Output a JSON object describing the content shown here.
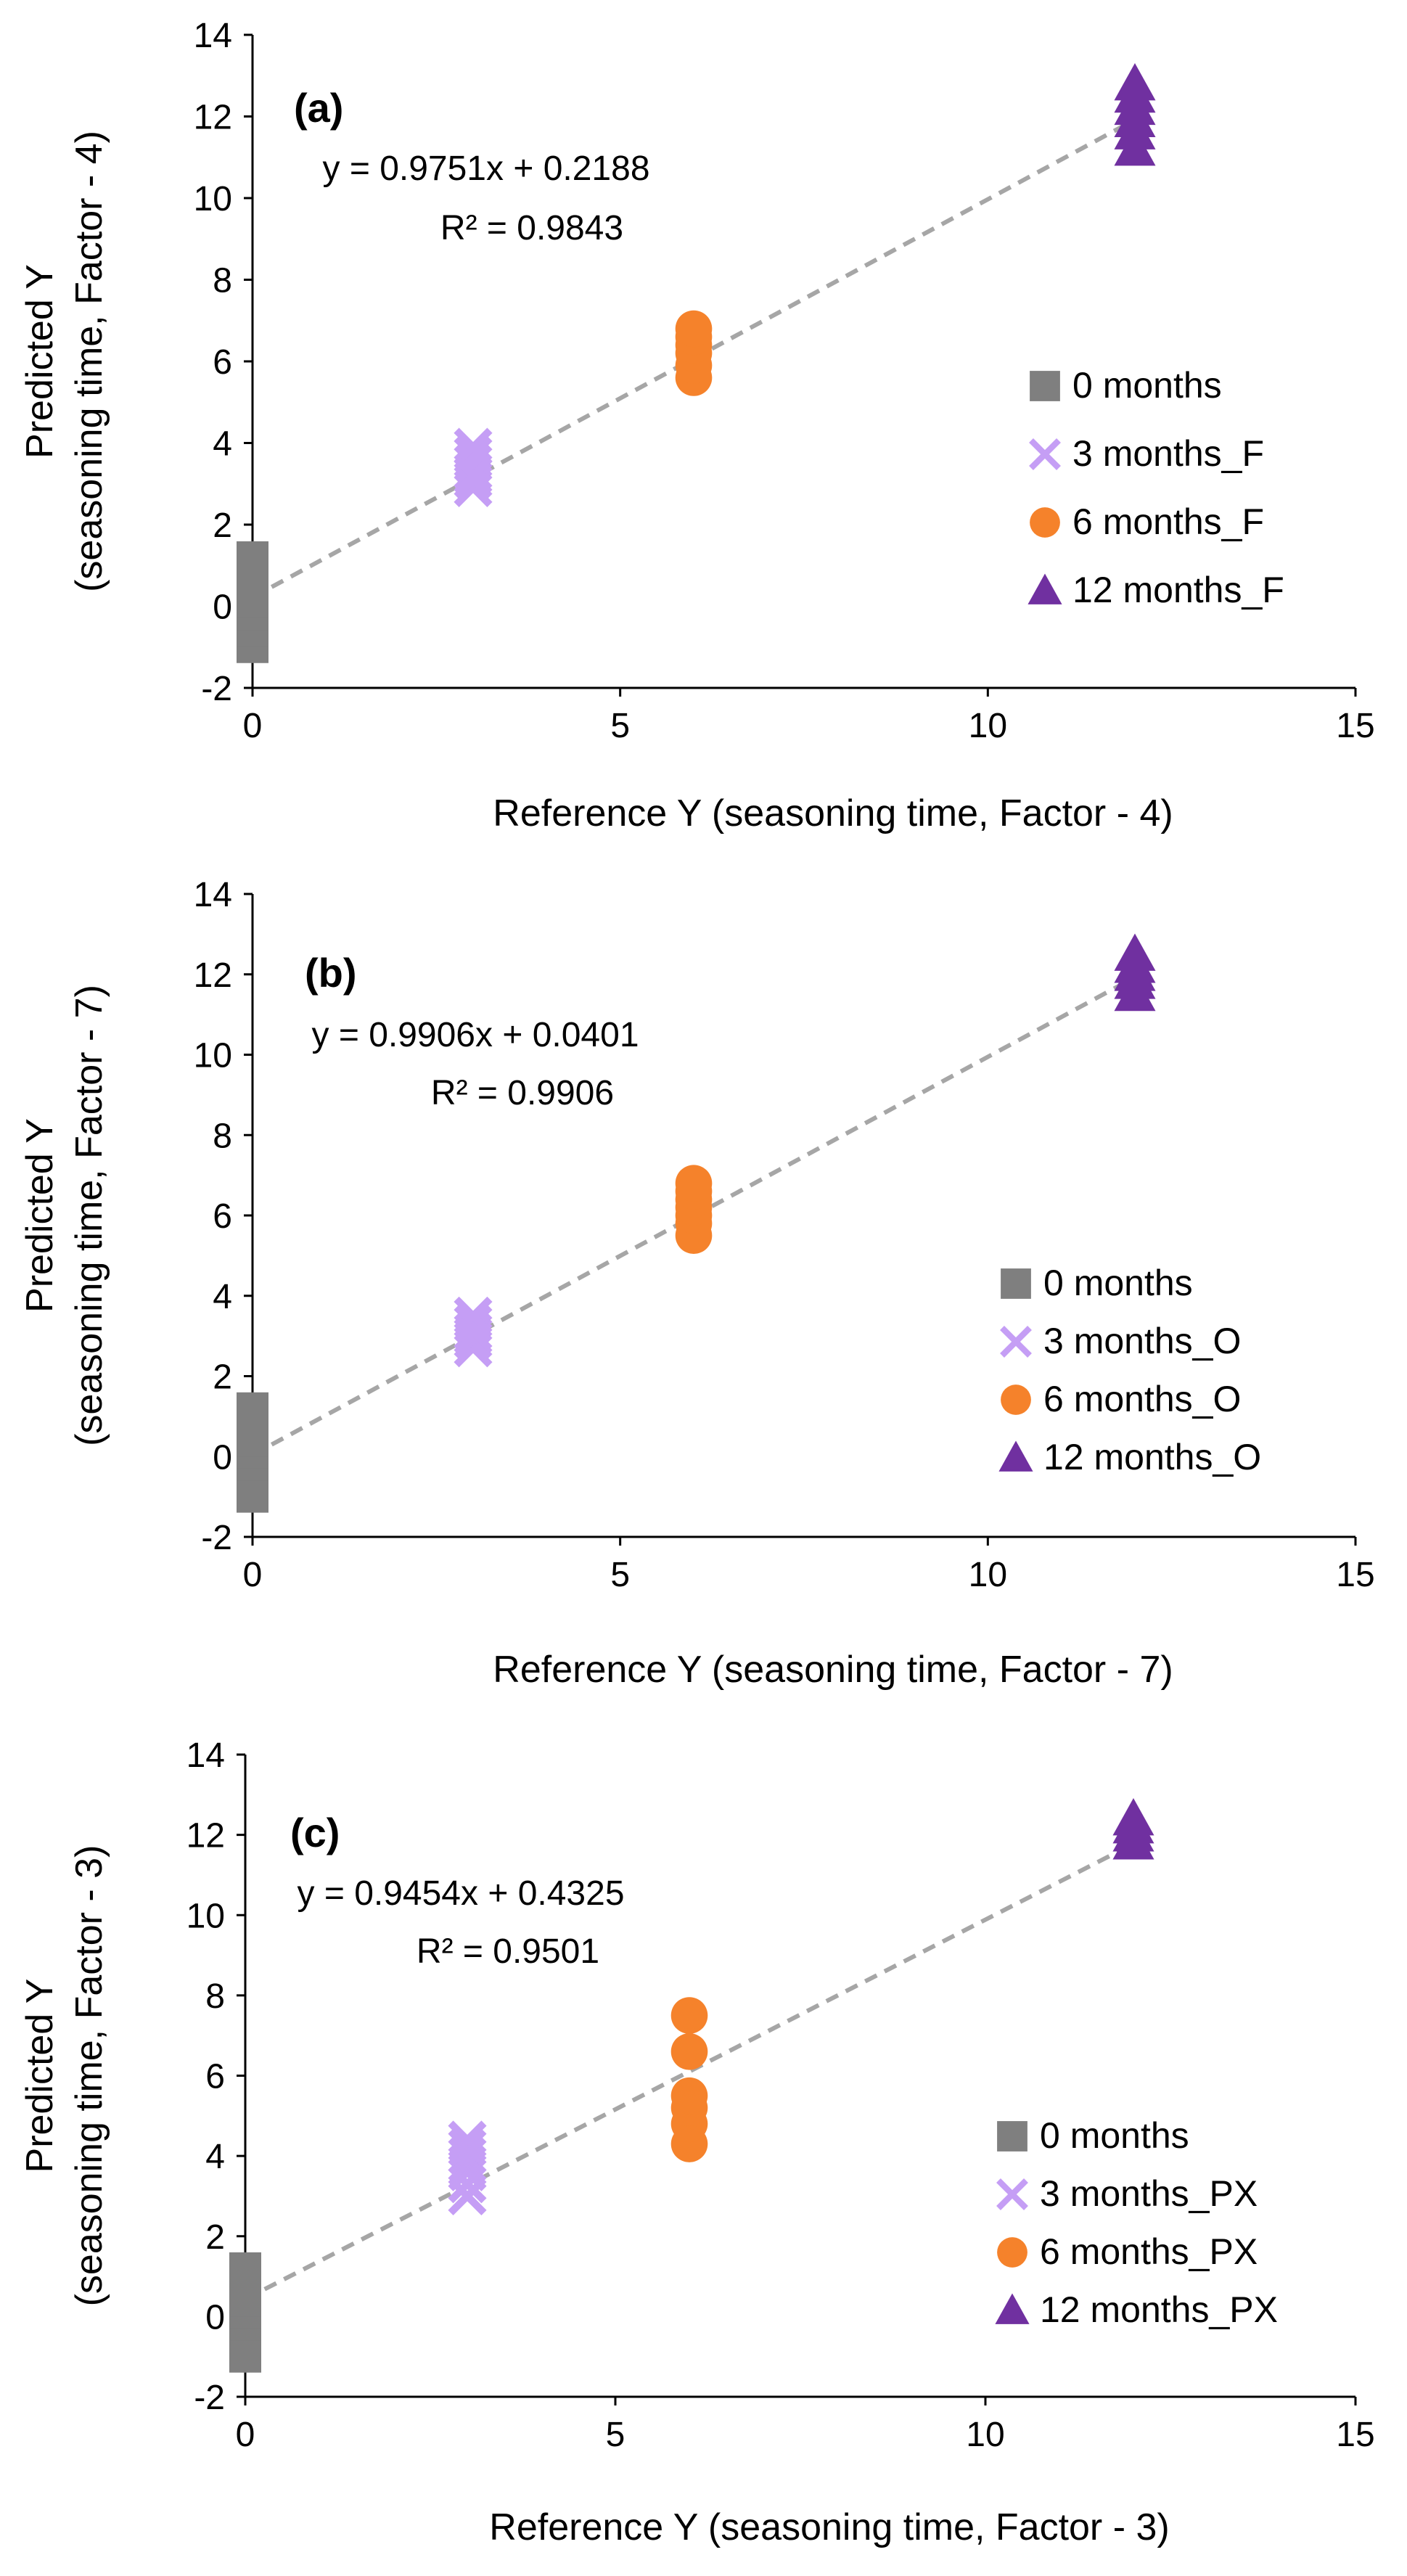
{
  "chart_data": [
    {
      "type": "scatter",
      "panel_label": "(a)",
      "xlabel": "Reference Y (seasoning time, Factor - 4)",
      "ylabel_line1": "Predicted Y",
      "ylabel_line2": "(seasoning time, Factor - 4)",
      "xlim": [
        0,
        15
      ],
      "ylim": [
        -2,
        14
      ],
      "xticks": [
        "0",
        "5",
        "10",
        "15"
      ],
      "yticks": [
        "-2",
        "0",
        "2",
        "4",
        "6",
        "8",
        "10",
        "12",
        "14"
      ],
      "trendline": {
        "slope": 0.9751,
        "intercept": 0.2188,
        "style": "dashed",
        "color": "#a6a6a6"
      },
      "equation": "y = 0.9751x + 0.2188",
      "r2": "R² = 0.9843",
      "legend_position": "right",
      "series": [
        {
          "name": "0 months",
          "marker": "square",
          "color": "#7f7f7f",
          "x": [
            0,
            0,
            0,
            0,
            0,
            0,
            0
          ],
          "y": [
            -1.0,
            -0.6,
            -0.2,
            0.1,
            0.4,
            0.8,
            1.2
          ]
        },
        {
          "name": "3 months_F",
          "marker": "x",
          "color": "#c59ef5",
          "x": [
            3,
            3,
            3,
            3,
            3,
            3,
            3
          ],
          "y": [
            2.9,
            3.1,
            3.3,
            3.5,
            3.7,
            3.9,
            3.2
          ]
        },
        {
          "name": "6 months_F",
          "marker": "circle",
          "color": "#f5822b",
          "x": [
            6,
            6,
            6,
            6,
            6,
            6
          ],
          "y": [
            5.6,
            5.9,
            6.2,
            6.4,
            6.6,
            6.8
          ]
        },
        {
          "name": "12 months_F",
          "marker": "triangle",
          "color": "#7030a0",
          "x": [
            12,
            12,
            12,
            12,
            12,
            12
          ],
          "y": [
            11.2,
            11.6,
            11.9,
            12.2,
            12.5,
            12.8
          ]
        }
      ]
    },
    {
      "type": "scatter",
      "panel_label": "(b)",
      "xlabel": "Reference Y (seasoning time, Factor - 7)",
      "ylabel_line1": "Predicted Y",
      "ylabel_line2": "(seasoning time, Factor - 7)",
      "xlim": [
        0,
        15
      ],
      "ylim": [
        -2,
        14
      ],
      "xticks": [
        "0",
        "5",
        "10",
        "15"
      ],
      "yticks": [
        "-2",
        "0",
        "2",
        "4",
        "6",
        "8",
        "10",
        "12",
        "14"
      ],
      "trendline": {
        "slope": 0.9906,
        "intercept": 0.0401,
        "style": "dashed",
        "color": "#a6a6a6"
      },
      "equation": "y = 0.9906x + 0.0401",
      "r2": "R² = 0.9906",
      "legend_position": "right",
      "series": [
        {
          "name": "0 months",
          "marker": "square",
          "color": "#7f7f7f",
          "x": [
            0,
            0,
            0,
            0,
            0,
            0,
            0
          ],
          "y": [
            -1.0,
            -0.6,
            -0.2,
            0.1,
            0.4,
            0.8,
            1.2
          ]
        },
        {
          "name": "3 months_O",
          "marker": "x",
          "color": "#c59ef5",
          "x": [
            3,
            3,
            3,
            3,
            3,
            3
          ],
          "y": [
            2.7,
            2.9,
            3.0,
            3.1,
            3.3,
            3.5
          ]
        },
        {
          "name": "6 months_O",
          "marker": "circle",
          "color": "#f5822b",
          "x": [
            6,
            6,
            6,
            6,
            6,
            6,
            6
          ],
          "y": [
            5.5,
            5.8,
            6.0,
            6.2,
            6.4,
            6.6,
            6.8
          ]
        },
        {
          "name": "12 months_O",
          "marker": "triangle",
          "color": "#7030a0",
          "x": [
            12,
            12,
            12,
            12,
            12
          ],
          "y": [
            11.5,
            11.8,
            12.0,
            12.2,
            12.5
          ]
        }
      ]
    },
    {
      "type": "scatter",
      "panel_label": "(c)",
      "xlabel": "Reference Y (seasoning time, Factor - 3)",
      "ylabel_line1": "Predicted Y",
      "ylabel_line2": "(seasoning time, Factor - 3)",
      "xlim": [
        0,
        15
      ],
      "ylim": [
        -2,
        14
      ],
      "xticks": [
        "0",
        "5",
        "10",
        "15"
      ],
      "yticks": [
        "-2",
        "0",
        "2",
        "4",
        "6",
        "8",
        "10",
        "12",
        "14"
      ],
      "trendline": {
        "slope": 0.9454,
        "intercept": 0.4325,
        "style": "dashed",
        "color": "#a6a6a6"
      },
      "equation": "y = 0.9454x + 0.4325",
      "r2": "R² = 0.9501",
      "legend_position": "right",
      "series": [
        {
          "name": "0 months",
          "marker": "square",
          "color": "#7f7f7f",
          "x": [
            0,
            0,
            0,
            0,
            0,
            0,
            0
          ],
          "y": [
            -1.0,
            -0.6,
            -0.2,
            0.1,
            0.4,
            0.8,
            1.2
          ]
        },
        {
          "name": "3 months_PX",
          "marker": "x",
          "color": "#c59ef5",
          "x": [
            3,
            3,
            3,
            3,
            3,
            3,
            3
          ],
          "y": [
            3.0,
            3.3,
            3.6,
            3.8,
            4.0,
            4.2,
            4.4
          ]
        },
        {
          "name": "6 months_PX",
          "marker": "circle",
          "color": "#f5822b",
          "x": [
            6,
            6,
            6,
            6,
            6,
            6
          ],
          "y": [
            4.3,
            4.8,
            5.2,
            5.5,
            6.6,
            7.5
          ]
        },
        {
          "name": "12 months_PX",
          "marker": "triangle",
          "color": "#7030a0",
          "x": [
            12,
            12,
            12,
            12
          ],
          "y": [
            11.8,
            12.0,
            12.2,
            12.4
          ]
        }
      ]
    }
  ]
}
